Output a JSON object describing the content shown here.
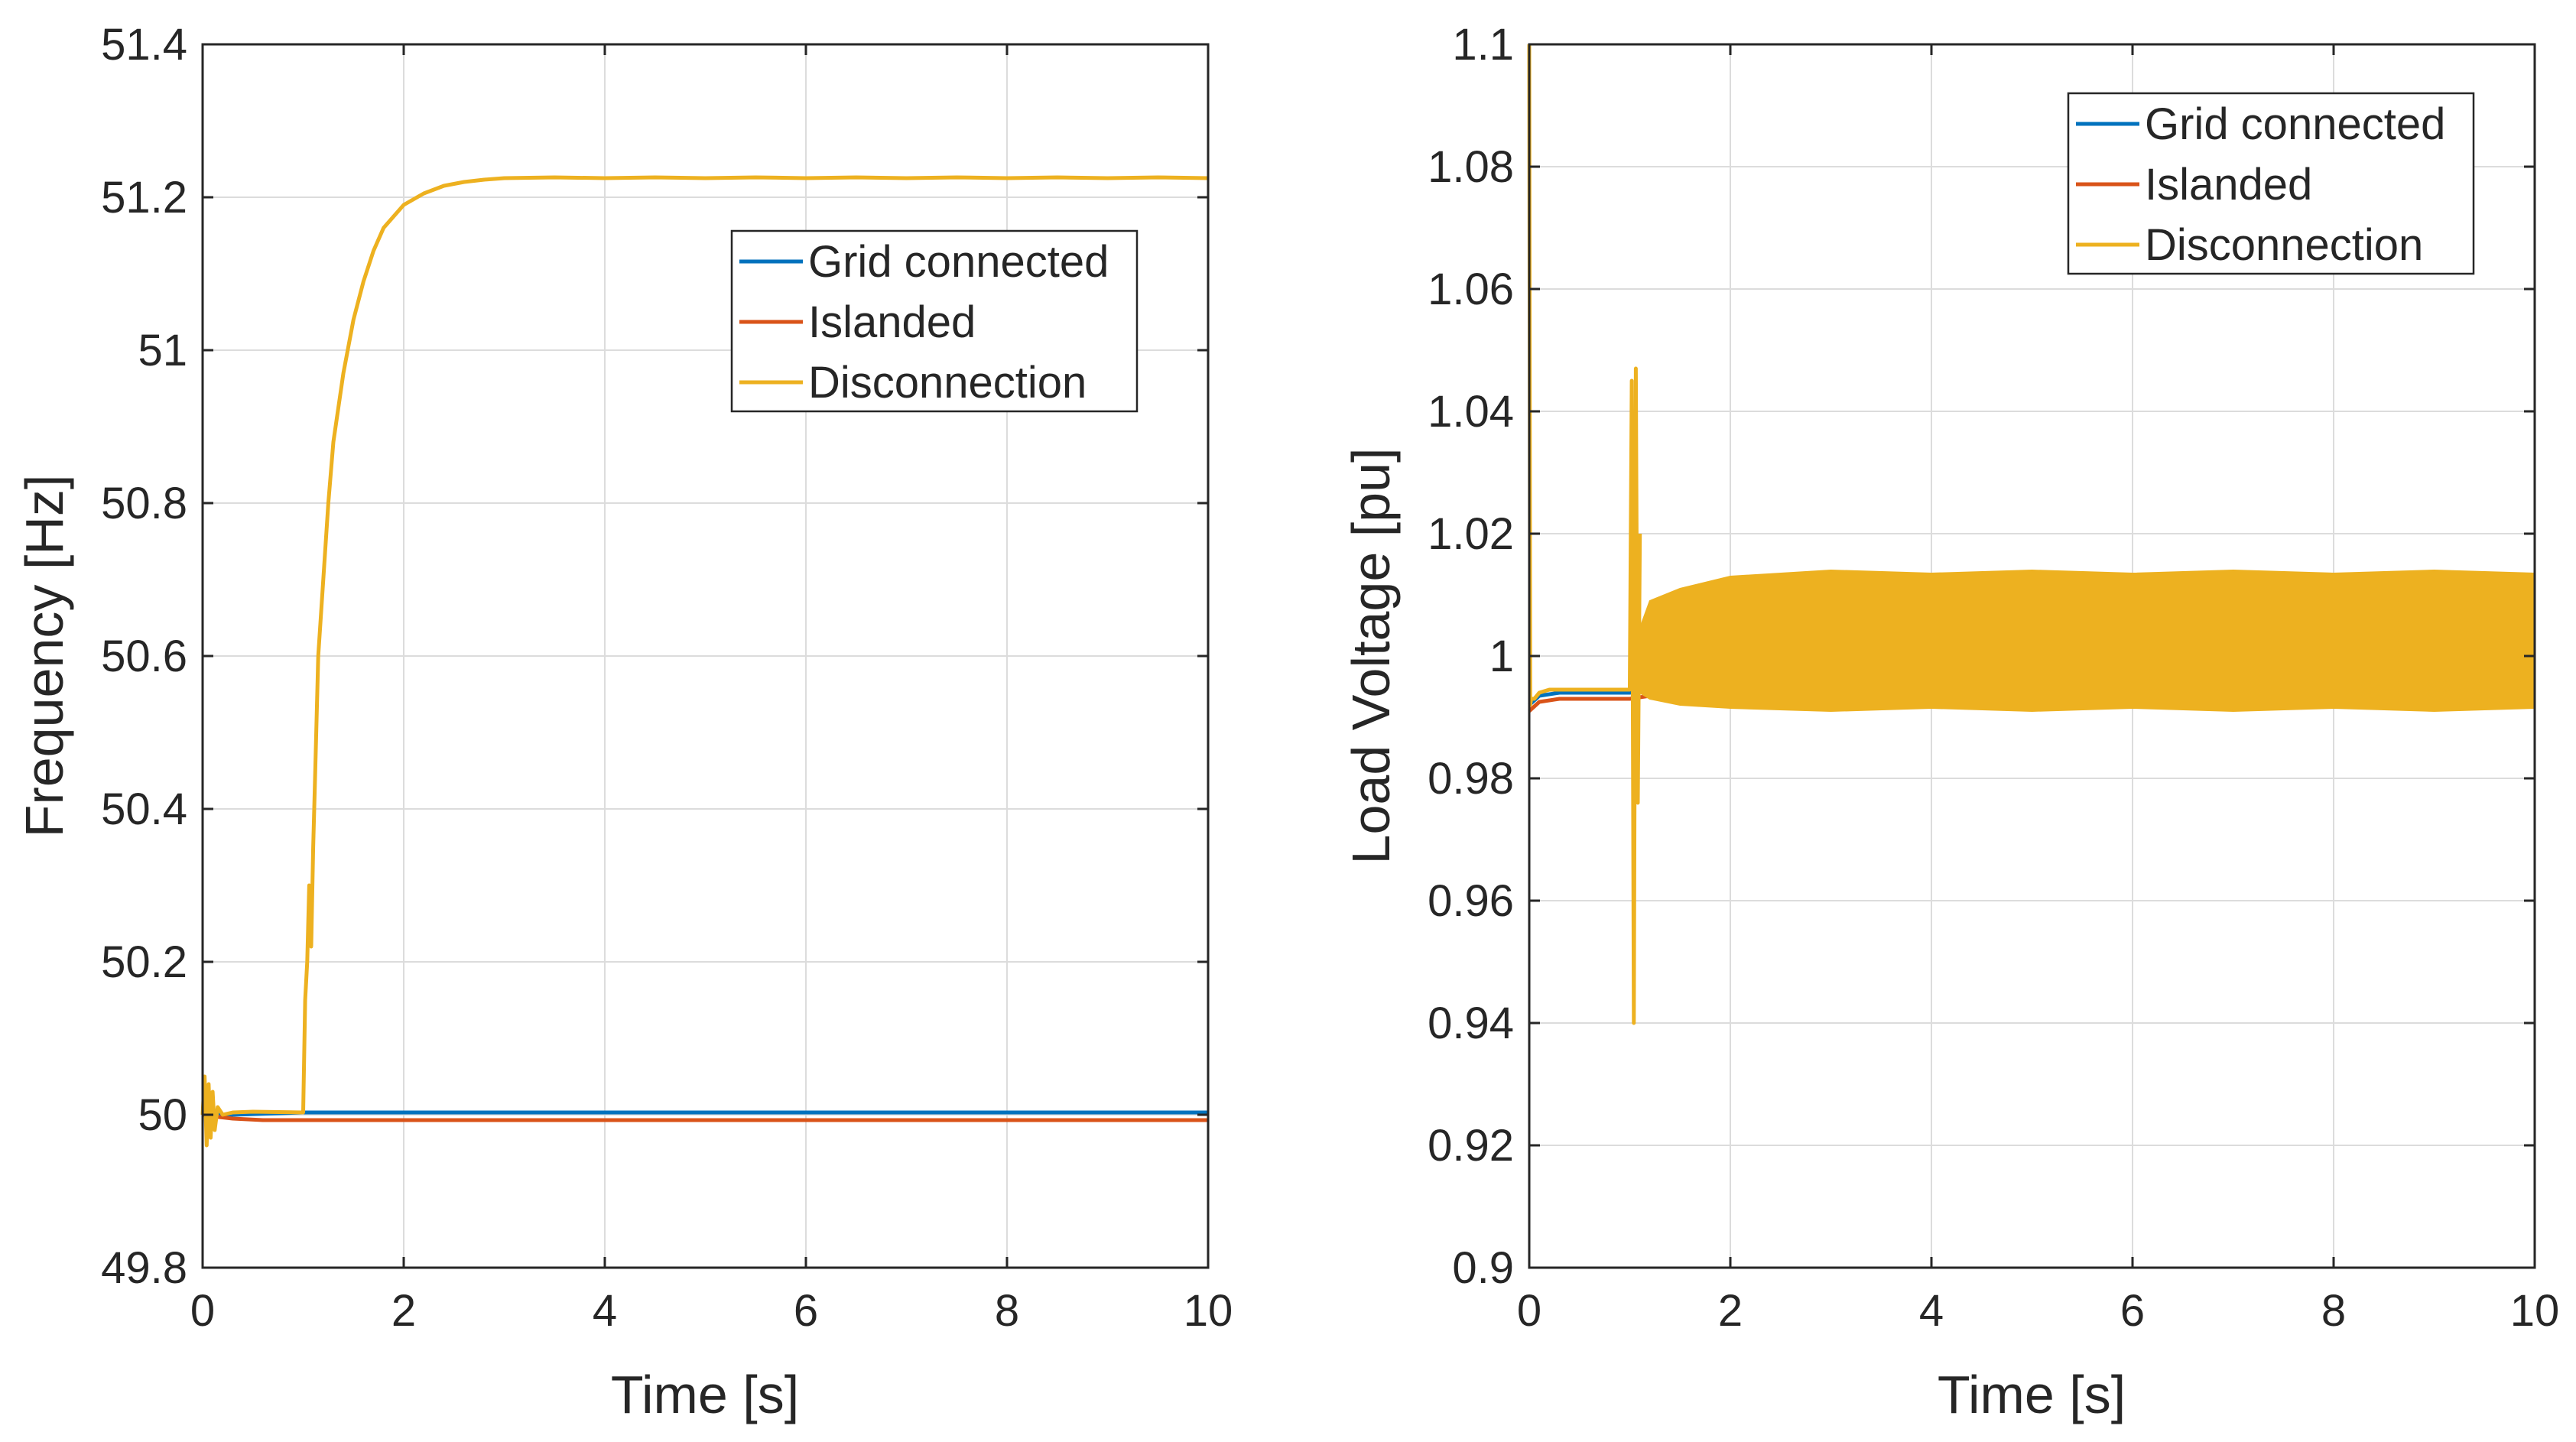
{
  "chart_data": [
    {
      "type": "line",
      "xlabel": "Time [s]",
      "ylabel": "Frequency [Hz]",
      "xlim": [
        0,
        10
      ],
      "ylim": [
        49.8,
        51.4
      ],
      "xticks": [
        0,
        2,
        4,
        6,
        8,
        10
      ],
      "xtick_labels": [
        "0",
        "2",
        "4",
        "6",
        "8",
        "10"
      ],
      "yticks": [
        49.8,
        50,
        50.2,
        50.4,
        50.6,
        50.8,
        51,
        51.2,
        51.4
      ],
      "ytick_labels": [
        "49.8",
        "50",
        "50.2",
        "50.4",
        "50.6",
        "50.8",
        "51",
        "51.2",
        "51.4"
      ],
      "grid": true,
      "legend_position": "upper-right",
      "series": [
        {
          "name": "Grid connected",
          "color": "#0072BD",
          "x": [
            0,
            0.1,
            0.3,
            1,
            2,
            4,
            6,
            8,
            10
          ],
          "y": [
            50.0,
            50.0,
            50.0,
            50.003,
            50.003,
            50.003,
            50.003,
            50.003,
            50.003
          ]
        },
        {
          "name": "Islanded",
          "color": "#D95319",
          "x": [
            0,
            0.1,
            0.3,
            0.6,
            1,
            2,
            4,
            6,
            8,
            10
          ],
          "y": [
            50.0,
            49.998,
            49.995,
            49.993,
            49.993,
            49.993,
            49.993,
            49.993,
            49.993,
            49.993
          ]
        },
        {
          "name": "Disconnection",
          "color": "#EDB120",
          "x": [
            0,
            0.02,
            0.04,
            0.06,
            0.08,
            0.1,
            0.12,
            0.15,
            0.2,
            0.3,
            0.5,
            1.0,
            1.02,
            1.04,
            1.06,
            1.08,
            1.1,
            1.12,
            1.15,
            1.2,
            1.25,
            1.3,
            1.4,
            1.5,
            1.6,
            1.7,
            1.8,
            2.0,
            2.2,
            2.4,
            2.6,
            2.8,
            3.0,
            3.5,
            4.0,
            4.5,
            5.0,
            5.5,
            6.0,
            6.5,
            7.0,
            7.5,
            8.0,
            8.5,
            9.0,
            9.5,
            10.0
          ],
          "y": [
            50.0,
            50.05,
            49.96,
            50.04,
            49.97,
            50.03,
            49.98,
            50.01,
            50.0,
            50.003,
            50.004,
            50.003,
            50.15,
            50.2,
            50.3,
            50.22,
            50.35,
            50.45,
            50.6,
            50.7,
            50.8,
            50.88,
            50.97,
            51.04,
            51.09,
            51.13,
            51.16,
            51.19,
            51.205,
            51.215,
            51.22,
            51.223,
            51.225,
            51.226,
            51.225,
            51.226,
            51.225,
            51.226,
            51.225,
            51.226,
            51.225,
            51.226,
            51.225,
            51.226,
            51.225,
            51.226,
            51.225
          ]
        }
      ]
    },
    {
      "type": "line",
      "xlabel": "Time [s]",
      "ylabel": "Load Voltage [pu]",
      "xlim": [
        0,
        10
      ],
      "ylim": [
        0.9,
        1.1
      ],
      "xticks": [
        0,
        2,
        4,
        6,
        8,
        10
      ],
      "xtick_labels": [
        "0",
        "2",
        "4",
        "6",
        "8",
        "10"
      ],
      "yticks": [
        0.9,
        0.92,
        0.94,
        0.96,
        0.98,
        1.0,
        1.02,
        1.04,
        1.06,
        1.08,
        1.1
      ],
      "ytick_labels": [
        "0.9",
        "0.92",
        "0.94",
        "0.96",
        "0.98",
        "1",
        "1.02",
        "1.04",
        "1.06",
        "1.08",
        "1.1"
      ],
      "grid": true,
      "legend_position": "upper-right",
      "series": [
        {
          "name": "Grid connected",
          "color": "#0072BD",
          "x": [
            0,
            0.1,
            0.3,
            1.0,
            1.2,
            1.5
          ],
          "y": [
            0.992,
            0.9935,
            0.994,
            0.994,
            0.9945,
            0.9945
          ]
        },
        {
          "name": "Islanded",
          "color": "#D95319",
          "x": [
            0,
            0.1,
            0.3,
            1.0,
            1.2,
            1.5
          ],
          "y": [
            0.991,
            0.9925,
            0.993,
            0.993,
            0.9935,
            0.9935
          ]
        },
        {
          "name": "Disconnection",
          "color": "#EDB120",
          "x": [
            0,
            0.01,
            0.02,
            0.05,
            0.1,
            0.2,
            0.4,
            0.6,
            0.8,
            1.0,
            1.0,
            1.02,
            1.04,
            1.06,
            1.08,
            1.1
          ],
          "y": [
            1.1,
            0.992,
            0.993,
            0.993,
            0.994,
            0.9945,
            0.9945,
            0.9945,
            0.9945,
            0.9945,
            0.995,
            1.045,
            0.94,
            1.047,
            0.976,
            1.02
          ],
          "band": {
            "x": [
              1.0,
              1.2,
              1.5,
              2.0,
              3.0,
              4.0,
              5.0,
              6.0,
              7.0,
              8.0,
              9.0,
              10.0
            ],
            "upper": [
              1.0,
              1.009,
              1.011,
              1.013,
              1.014,
              1.0135,
              1.014,
              1.0135,
              1.014,
              1.0135,
              1.014,
              1.0135
            ],
            "lower": [
              0.995,
              0.993,
              0.992,
              0.9915,
              0.991,
              0.9915,
              0.991,
              0.9915,
              0.991,
              0.9915,
              0.991,
              0.9915
            ]
          }
        }
      ]
    }
  ]
}
